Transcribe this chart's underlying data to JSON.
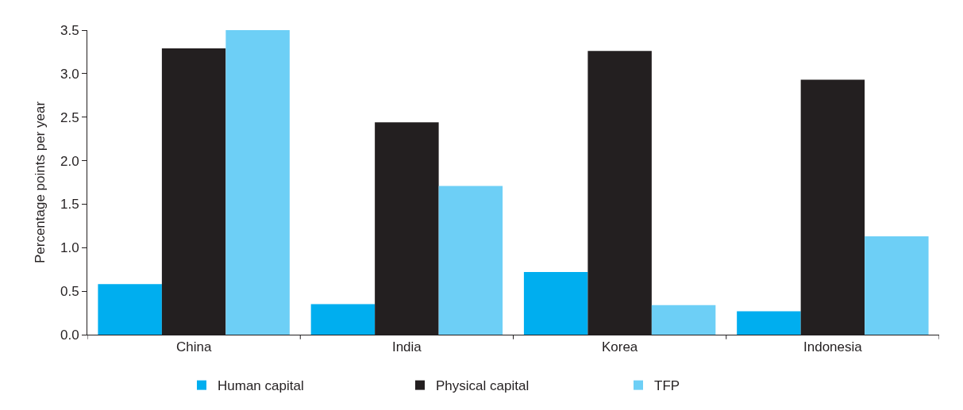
{
  "chart_data": {
    "type": "bar",
    "ylabel": "Percentage points per year",
    "categories": [
      "China",
      "India",
      "Korea",
      "Indonesia"
    ],
    "series": [
      {
        "name": "Human capital",
        "color": "#00aeef",
        "values": [
          0.58,
          0.35,
          0.72,
          0.27
        ]
      },
      {
        "name": "Physical capital",
        "color": "#231f20",
        "values": [
          3.29,
          2.44,
          3.26,
          2.93
        ]
      },
      {
        "name": "TFP",
        "color": "#6dcff6",
        "values": [
          3.5,
          1.71,
          0.34,
          1.13
        ]
      }
    ],
    "ylim": [
      0,
      3.5
    ],
    "yticks": [
      {
        "value": 0,
        "label": "0.0"
      },
      0.5,
      {
        "value": 1,
        "label": "1.0"
      },
      1.5,
      {
        "value": 2,
        "label": "2.0"
      },
      2.5,
      {
        "value": 3,
        "label": "3.0"
      },
      3.5
    ],
    "legend": "bottom"
  }
}
